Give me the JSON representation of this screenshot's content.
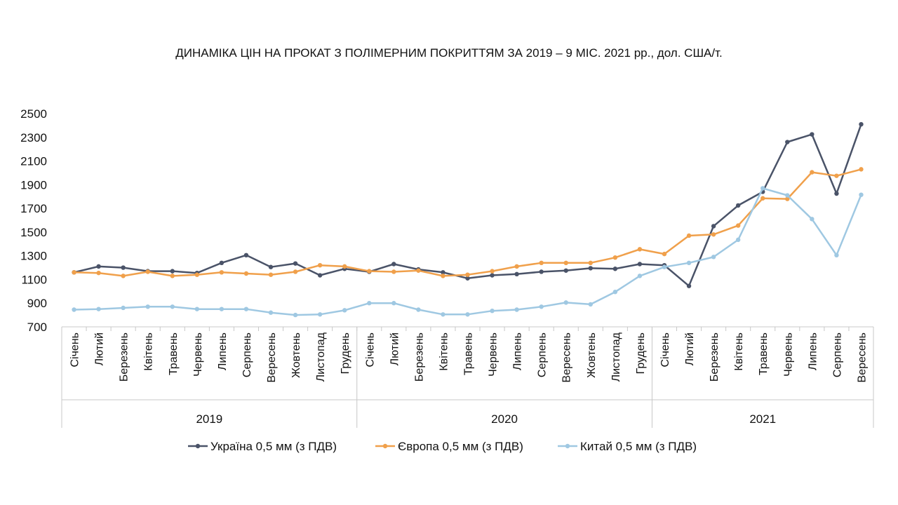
{
  "chart_data": {
    "type": "line",
    "title": "ДИНАМІКА ЦІН НА ПРОКАТ З ПОЛІМЕРНИМ ПОКРИТТЯМ ЗА 2019 – 9 МІС. 2021 рр., дол. США/т.",
    "ylim": [
      700,
      2500
    ],
    "yticks": [
      700,
      900,
      1100,
      1300,
      1500,
      1700,
      1900,
      2100,
      2300,
      2500
    ],
    "grid": false,
    "legend_position": "bottom",
    "groups": [
      {
        "year": "2019",
        "months": [
          "Січень",
          "Лютий",
          "Березень",
          "Квітень",
          "Травень",
          "Червень",
          "Липень",
          "Серпень",
          "Вересень",
          "Жовтень",
          "Листопад",
          "Грудень"
        ]
      },
      {
        "year": "2020",
        "months": [
          "Січень",
          "Лютий",
          "Березень",
          "Квітень",
          "Травень",
          "Червень",
          "Липень",
          "Серпень",
          "Вересень",
          "Жовтень",
          "Листопад",
          "Грудень"
        ]
      },
      {
        "year": "2021",
        "months": [
          "Січень",
          "Лютий",
          "Березень",
          "Квітень",
          "Травень",
          "Червень",
          "Липень",
          "Серпень",
          "Вересень"
        ]
      }
    ],
    "series": [
      {
        "name": "Україна 0,5 мм (з ПДВ)",
        "color": "#4a5368",
        "values": [
          1160,
          1210,
          1200,
          1170,
          1170,
          1155,
          1240,
          1305,
          1205,
          1235,
          1135,
          1190,
          1165,
          1230,
          1185,
          1160,
          1110,
          1135,
          1145,
          1165,
          1175,
          1195,
          1190,
          1230,
          1220,
          1045,
          1550,
          1725,
          1840,
          2260,
          2325,
          1825,
          2410
        ]
      },
      {
        "name": "Європа 0,5 мм (з ПДВ)",
        "color": "#f0a04b",
        "values": [
          1160,
          1155,
          1130,
          1165,
          1130,
          1140,
          1160,
          1150,
          1140,
          1165,
          1220,
          1210,
          1170,
          1165,
          1175,
          1130,
          1140,
          1170,
          1210,
          1240,
          1240,
          1240,
          1285,
          1355,
          1315,
          1470,
          1480,
          1555,
          1785,
          1780,
          2005,
          1975,
          2030
        ]
      },
      {
        "name": "Китай 0,5 мм (з ПДВ)",
        "color": "#9fc8e2",
        "values": [
          845,
          850,
          860,
          870,
          870,
          850,
          850,
          850,
          820,
          800,
          805,
          840,
          900,
          900,
          845,
          805,
          805,
          835,
          845,
          870,
          905,
          890,
          995,
          1130,
          1205,
          1240,
          1290,
          1435,
          1870,
          1810,
          1610,
          1305,
          1815
        ]
      }
    ]
  }
}
